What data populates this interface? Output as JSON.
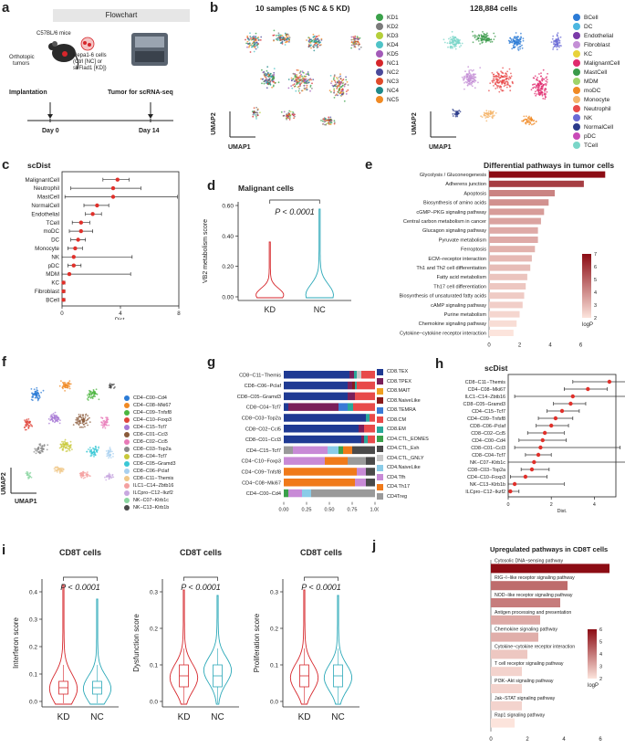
{
  "panels": {
    "a": {
      "label": "a",
      "header": "Flowchart",
      "mice": "C57BL/6 mice",
      "ortho_line1": "Orthotopic",
      "ortho_line2": "tumors",
      "cells_line1": "Hepa1-6 cells",
      "cells_line2": "(Ctrl [NC] or",
      "cells_line3": "shFlad1 [KD])",
      "implantation": "Implantation",
      "tumor_seq": "Tumor for scRNA-seq",
      "day0": "Day 0",
      "day14": "Day 14"
    },
    "b": {
      "label": "b",
      "left_title": "10 samples (5 NC & 5 KD)",
      "right_title": "128,884 cells",
      "xaxis": "UMAP1",
      "yaxis": "UMAP2",
      "samples": [
        {
          "name": "KD1",
          "color": "#3aa14a"
        },
        {
          "name": "KD2",
          "color": "#7b7b7b"
        },
        {
          "name": "KD3",
          "color": "#b5cf3a"
        },
        {
          "name": "KD4",
          "color": "#4fc3c7"
        },
        {
          "name": "KD5",
          "color": "#a35ab8"
        },
        {
          "name": "NC1",
          "color": "#d6262b"
        },
        {
          "name": "NC2",
          "color": "#4a4a9a"
        },
        {
          "name": "NC3",
          "color": "#e04a2a"
        },
        {
          "name": "NC4",
          "color": "#1f8a8a"
        },
        {
          "name": "NC5",
          "color": "#f08a24"
        }
      ],
      "celltypes": [
        {
          "name": "BCell",
          "color": "#2b7bd6"
        },
        {
          "name": "DC",
          "color": "#4cb6e0"
        },
        {
          "name": "Endothelial",
          "color": "#7a3aa8"
        },
        {
          "name": "Fibroblast",
          "color": "#c48fd6"
        },
        {
          "name": "KC",
          "color": "#e8d23a"
        },
        {
          "name": "MalignantCell",
          "color": "#e02a6e"
        },
        {
          "name": "MastCell",
          "color": "#3a9a4a"
        },
        {
          "name": "MDM",
          "color": "#9fd46a"
        },
        {
          "name": "moDC",
          "color": "#f08a24"
        },
        {
          "name": "Monocyte",
          "color": "#f4b46a"
        },
        {
          "name": "Neutrophil",
          "color": "#e84a4a"
        },
        {
          "name": "NK",
          "color": "#6a6ad6"
        },
        {
          "name": "NormalCell",
          "color": "#2a3a8a"
        },
        {
          "name": "pDC",
          "color": "#c84ab8"
        },
        {
          "name": "TCell",
          "color": "#7ad6c8"
        }
      ]
    },
    "c": {
      "label": "c",
      "title": "scDist",
      "xlabel": "Dist.",
      "ticks": [
        "0",
        "4",
        "8"
      ]
    },
    "d": {
      "label": "d",
      "title": "Malignant cells",
      "ylabel": "VB2 metabolism score",
      "pval": "P < 0.0001",
      "groups": [
        "KD",
        "NC"
      ],
      "yticks": [
        "0.00",
        "0.20",
        "0.40",
        "0.60"
      ]
    },
    "e": {
      "label": "e",
      "title": "Differential pathways in tumor cells",
      "xticks": [
        "0",
        "2",
        "4",
        "6"
      ],
      "legend": "logP",
      "legend_ticks": [
        "7",
        "6",
        "5",
        "4",
        "3",
        "2"
      ]
    },
    "f": {
      "label": "f",
      "xaxis": "UMAP1",
      "yaxis": "UMAP2",
      "clusters": [
        {
          "name": "CD4−C00−Cd4",
          "color": "#2b7bd6"
        },
        {
          "name": "CD4−C08−Mki67",
          "color": "#f08a24"
        },
        {
          "name": "CD4−C09−Tnfsf8",
          "color": "#4cb640"
        },
        {
          "name": "CD4−C10−Foxp3",
          "color": "#e0443a"
        },
        {
          "name": "CD4−C15−Tcf7",
          "color": "#a87ad6"
        },
        {
          "name": "CD8−C01−Ccl3",
          "color": "#8a5a3a"
        },
        {
          "name": "CD8−C02−Ccl5",
          "color": "#e87ab8"
        },
        {
          "name": "CD8−C03−Top2a",
          "color": "#8a8a8a"
        },
        {
          "name": "CD8−C04−Tcf7",
          "color": "#c8c83a"
        },
        {
          "name": "CD8−C05−Gramd3",
          "color": "#3ac8d6"
        },
        {
          "name": "CD8−C06−Pclaf",
          "color": "#a8d0f0"
        },
        {
          "name": "CD8−C11−Themis",
          "color": "#f0c88a"
        },
        {
          "name": "ILC1−C14−Zbtb16",
          "color": "#f4a0a0"
        },
        {
          "name": "ILCpro−C12−Ikzf2",
          "color": "#c8a8e0"
        },
        {
          "name": "NK−C07−Klrb1c",
          "color": "#8ad6a0"
        },
        {
          "name": "NK−C13−Klrb1b",
          "color": "#4a4a4a"
        }
      ]
    },
    "g": {
      "label": "g",
      "xticks": [
        "0.00",
        "0.25",
        "0.50",
        "0.75",
        "1.00"
      ],
      "legend": [
        {
          "name": "CD8.TEX",
          "color": "#1f3a93"
        },
        {
          "name": "CD8.TPEX",
          "color": "#7a1f5a"
        },
        {
          "name": "CD8.MAIT",
          "color": "#f0a020"
        },
        {
          "name": "CD8.NaiveLike",
          "color": "#8a1a1a"
        },
        {
          "name": "CD8.TEMRA",
          "color": "#3a7ad6"
        },
        {
          "name": "CD8.CM",
          "color": "#e84a4a"
        },
        {
          "name": "CD8.EM",
          "color": "#2aa89a"
        },
        {
          "name": "CD4.CTL_EOMES",
          "color": "#3aa04a"
        },
        {
          "name": "CD4.CTL_Exh",
          "color": "#4a4a4a"
        },
        {
          "name": "CD4.CTL_GNLY",
          "color": "#c8c8c8"
        },
        {
          "name": "CD4.NaiveLike",
          "color": "#8acce8"
        },
        {
          "name": "CD4.Tfh",
          "color": "#c88ad6"
        },
        {
          "name": "CD4.Th17",
          "color": "#f07a1a"
        },
        {
          "name": "CD4Treg",
          "color": "#9a9a9a"
        }
      ]
    },
    "h": {
      "label": "h",
      "title": "scDist",
      "xlabel": "Dist.",
      "ticks": [
        "0",
        "2",
        "4"
      ]
    },
    "i": {
      "label": "i",
      "plots": [
        {
          "title": "CD8T cells",
          "ylabel": "Interferon score",
          "pval": "P < 0.0001",
          "yticks": [
            "0.0",
            "0.1",
            "0.2",
            "0.3",
            "0.4"
          ],
          "groups": [
            "KD",
            "NC"
          ]
        },
        {
          "title": "CD8T cells",
          "ylabel": "Dysfunction score",
          "pval": "P < 0.0001",
          "yticks": [
            "0.0",
            "0.1",
            "0.2",
            "0.3"
          ],
          "groups": [
            "KD",
            "NC"
          ]
        },
        {
          "title": "CD8T cells",
          "ylabel": "Proliferation score",
          "pval": "P < 0.0001",
          "yticks": [
            "0.0",
            "0.1",
            "0.2",
            "0.3"
          ],
          "groups": [
            "KD",
            "NC"
          ]
        }
      ]
    },
    "j": {
      "label": "j",
      "title": "Upregulated pathways in CD8T cells",
      "xticks": [
        "0",
        "2",
        "4",
        "6"
      ],
      "legend": "logP",
      "legend_ticks": [
        "6",
        "5",
        "4",
        "3",
        "2"
      ]
    }
  },
  "chart_data": [
    {
      "panel": "c",
      "type": "scatter",
      "title": "scDist",
      "xlabel": "Dist.",
      "xlim": [
        0,
        8
      ],
      "categories": [
        "MalignantCell",
        "Neutrophil",
        "MastCell",
        "NormalCell",
        "Endothelial",
        "TCell",
        "moDC",
        "DC",
        "Monocyte",
        "NK",
        "pDC",
        "MDM",
        "KC",
        "Fibroblast",
        "BCell"
      ],
      "values": [
        3.8,
        3.5,
        3.5,
        2.4,
        2.1,
        1.3,
        1.3,
        1.1,
        0.9,
        0.8,
        0.8,
        0.5,
        0.1,
        0.1,
        0.1
      ],
      "lower": [
        2.8,
        0.6,
        0.2,
        1.5,
        1.6,
        0.7,
        0.5,
        0.6,
        0.4,
        0.0,
        0.4,
        0.0,
        0.0,
        0.0,
        0.0
      ],
      "upper": [
        4.6,
        5.4,
        7.9,
        3.2,
        2.7,
        1.9,
        2.1,
        1.6,
        1.4,
        4.8,
        1.3,
        4.7,
        0.2,
        0.2,
        0.2
      ]
    },
    {
      "panel": "e",
      "type": "bar",
      "title": "Differential pathways in tumor cells",
      "categories": [
        "Glycolysis / Gluconeogenesis",
        "Adherens junction",
        "Apoptosis",
        "Biosynthesis of amino acids",
        "cGMP−PKG signaling pathway",
        "Central carbon metabolism in cancer",
        "Glucagon signaling pathway",
        "Pyruvate metabolism",
        "Ferroptosis",
        "ECM−receptor interaction",
        "Th1 and Th2 cell differentiation",
        "Fatty acid metabolism",
        "Th17 cell differentiation",
        "Biosynthesis of unsaturated fatty acids",
        "cAMP signaling pathway",
        "Purine metabolism",
        "Chemokine signaling pathway",
        "Cytokine−cytokine receptor interaction"
      ],
      "values": [
        7.6,
        6.2,
        4.3,
        3.9,
        3.6,
        3.4,
        3.2,
        3.2,
        3.0,
        2.8,
        2.7,
        2.5,
        2.4,
        2.3,
        2.2,
        2.0,
        1.8,
        1.6
      ],
      "xlim": [
        0,
        8
      ]
    },
    {
      "panel": "g",
      "type": "bar",
      "stacked": true,
      "orientation": "horizontal",
      "categories": [
        "CD8−C11−Themis",
        "CD8−C06−Pclaf",
        "CD8−C05−Gramd3",
        "CD8−C04−Tcf7",
        "CD8−C03−Top2a",
        "CD8−C02−Ccl5",
        "CD8−C01−Ccl3",
        "CD4−C15−Tcf7",
        "CD4−C10−Foxp3",
        "CD4−C09−Tnfsf8",
        "CD4−C08−Mki67",
        "CD4−C00−Cd4"
      ],
      "segments": [
        [
          [
            "CD8.TEX",
            0.72
          ],
          [
            "CD8.TPEX",
            0.05
          ],
          [
            "CD8.EM",
            0.03
          ],
          [
            "CD4.CTL_GNLY",
            0.05
          ],
          [
            "CD8.CM",
            0.15
          ]
        ],
        [
          [
            "CD8.TEX",
            0.7
          ],
          [
            "CD8.TPEX",
            0.05
          ],
          [
            "CD8.NaiveLike",
            0.03
          ],
          [
            "CD8.EM",
            0.02
          ],
          [
            "CD8.CM",
            0.2
          ]
        ],
        [
          [
            "CD8.TEX",
            0.7
          ],
          [
            "CD8.TPEX",
            0.08
          ],
          [
            "CD8.CM",
            0.22
          ]
        ],
        [
          [
            "CD8.TEX",
            0.05
          ],
          [
            "CD8.TPEX",
            0.55
          ],
          [
            "CD8.TEMRA",
            0.1
          ],
          [
            "CD8.EM",
            0.06
          ],
          [
            "CD8.CM",
            0.24
          ]
        ],
        [
          [
            "CD8.TEX",
            0.9
          ],
          [
            "CD8.EM",
            0.04
          ],
          [
            "CD8.CM",
            0.06
          ]
        ],
        [
          [
            "CD8.TEX",
            0.82
          ],
          [
            "CD8.TPEX",
            0.06
          ],
          [
            "CD8.CM",
            0.12
          ]
        ],
        [
          [
            "CD8.TEX",
            0.85
          ],
          [
            "CD8.TPEX",
            0.03
          ],
          [
            "CD8.EM",
            0.04
          ],
          [
            "CD8.CM",
            0.08
          ]
        ],
        [
          [
            "CD4Treg",
            0.1
          ],
          [
            "CD4.Tfh",
            0.38
          ],
          [
            "CD4.NaiveLike",
            0.12
          ],
          [
            "CD4.CTL_EOMES",
            0.05
          ],
          [
            "CD4.Th17",
            0.1
          ],
          [
            "CD4.CTL_Exh",
            0.25
          ]
        ],
        [
          [
            "CD4.Tfh",
            0.45
          ],
          [
            "CD4.Th17",
            0.25
          ],
          [
            "CD4Treg",
            0.2
          ],
          [
            "CD4.CTL_Exh",
            0.1
          ]
        ],
        [
          [
            "CD4.Th17",
            0.8
          ],
          [
            "CD4.Tfh",
            0.1
          ],
          [
            "CD4.CTL_Exh",
            0.1
          ]
        ],
        [
          [
            "CD4.Th17",
            0.78
          ],
          [
            "CD4.Tfh",
            0.12
          ],
          [
            "CD4.CTL_Exh",
            0.1
          ]
        ],
        [
          [
            "CD4.CTL_EOMES",
            0.05
          ],
          [
            "CD4.Tfh",
            0.15
          ],
          [
            "CD4.NaiveLike",
            0.1
          ],
          [
            "CD4Treg",
            0.7
          ]
        ]
      ],
      "xlim": [
        0,
        1
      ]
    },
    {
      "panel": "h",
      "type": "scatter",
      "title": "scDist",
      "xlabel": "Dist.",
      "xlim": [
        0,
        5
      ],
      "categories": [
        "CD8−C11−Themis",
        "CD4−C08−Mki67",
        "ILC1−C14−Zbtb16",
        "CD8−C05−Gramd3",
        "CD4−C15−Tcf7",
        "CD4−C09−Tnfsf8",
        "CD8−C06−Pclaf",
        "CD8−C02−Ccl5",
        "CD4−C00−Cd4",
        "CD8−C01−Ccl3",
        "CD8−C04−Tcf7",
        "NK−C07−Klrb1c",
        "CD8−C03−Top2a",
        "CD4−C10−Foxp3",
        "NK−C13−Klrb1b",
        "ILCpro−C12−Ikzf2"
      ],
      "values": [
        4.7,
        3.7,
        3.0,
        2.9,
        2.5,
        2.2,
        2.0,
        1.7,
        1.6,
        1.5,
        1.4,
        1.2,
        1.1,
        0.8,
        0.3,
        0.1
      ],
      "lower": [
        3.0,
        2.6,
        0.3,
        2.1,
        1.8,
        1.4,
        1.3,
        0.9,
        0.5,
        0.3,
        0.8,
        0.0,
        0.6,
        0.1,
        0.0,
        0.0
      ],
      "upper": [
        6.2,
        4.6,
        5.9,
        3.6,
        3.3,
        3.0,
        2.8,
        2.6,
        2.7,
        5.2,
        2.0,
        6.8,
        1.9,
        1.8,
        2.6,
        0.5
      ]
    },
    {
      "panel": "j",
      "type": "bar",
      "title": "Upregulated pathways in CD8T cells",
      "categories": [
        "Cytosolic DNA−sensing pathway",
        "RIG−I−like receptor signaling pathway",
        "NOD−like receptor signaling pathway",
        "Antigen processing and presentation",
        "Chemokine signaling pathway",
        "Cytokine−cytokine receptor interaction",
        "T cell receptor signaling pathway",
        "PI3K−Akt signaling pathway",
        "Jak−STAT signaling pathway",
        "Rap1 signaling pathway"
      ],
      "values": [
        6.5,
        4.2,
        3.8,
        2.7,
        2.6,
        2.0,
        1.7,
        1.7,
        1.7,
        1.3
      ],
      "xlim": [
        0,
        7
      ]
    }
  ]
}
